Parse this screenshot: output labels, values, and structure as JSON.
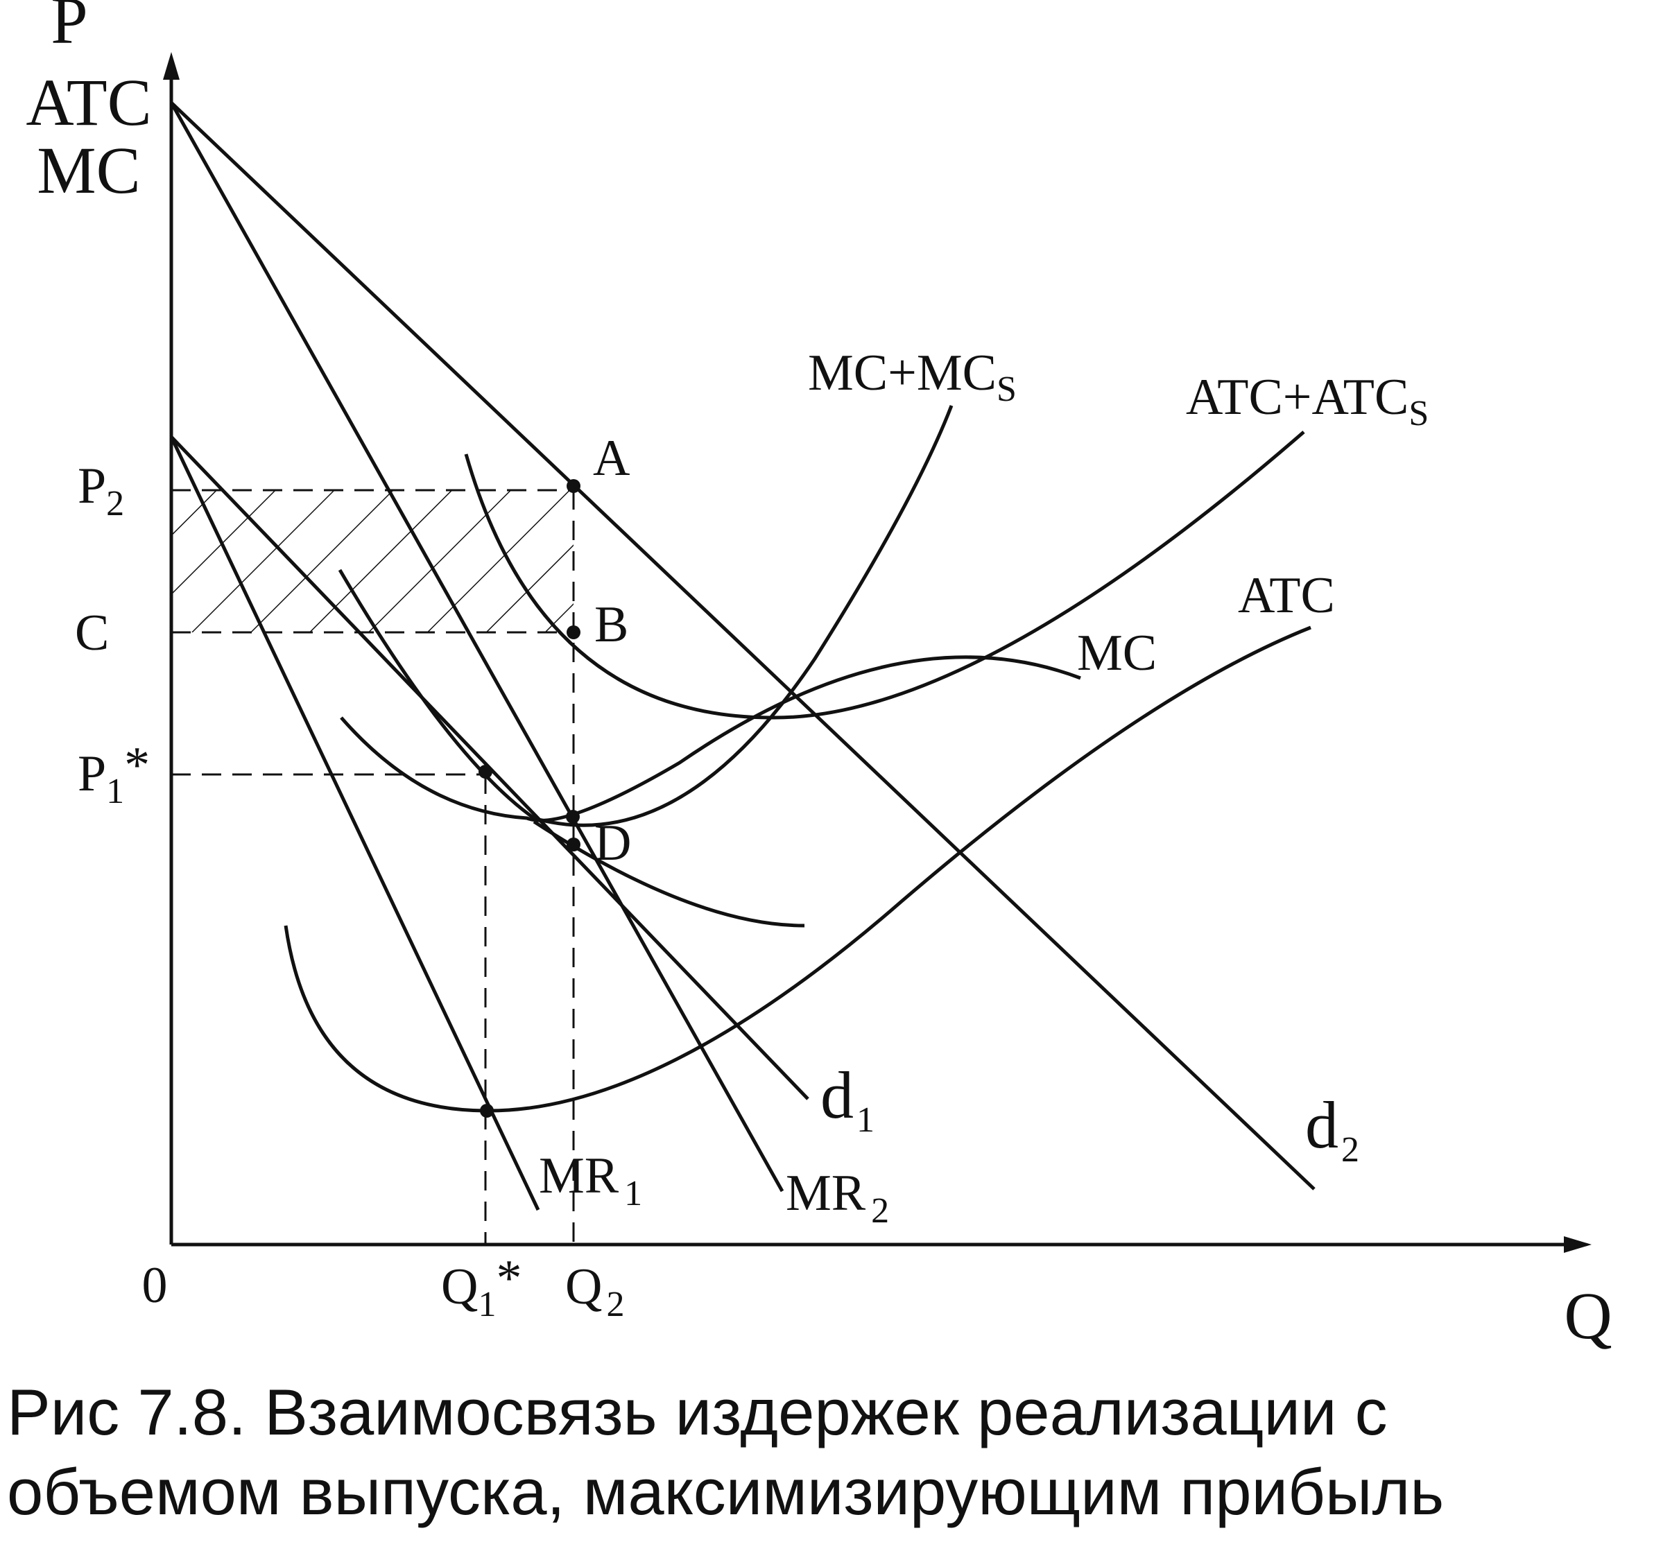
{
  "axes": {
    "y_label_lines": [
      "P",
      "ATC",
      "MC"
    ],
    "x_label": "Q",
    "origin": "0"
  },
  "y_ticks": {
    "p2": {
      "main": "P",
      "sub": "2"
    },
    "c": "C",
    "p1": {
      "main": "P",
      "sub": "1",
      "suffix": "*"
    }
  },
  "x_ticks": {
    "q1": {
      "main": "Q",
      "sub": "1",
      "suffix": "*"
    },
    "q2": {
      "main": "Q",
      "sub": "2"
    }
  },
  "curves": {
    "mc_mcs": {
      "main": "MC+MC",
      "sub": "S"
    },
    "atc_atcs": {
      "main": "ATC+ATC",
      "sub": "S"
    },
    "atc": "ATC",
    "mc": "MC",
    "d1": {
      "main": "d",
      "sub": "1"
    },
    "d2": {
      "main": "d",
      "sub": "2"
    },
    "mr1": {
      "main": "MR",
      "sub": "1"
    },
    "mr2": {
      "main": "MR",
      "sub": "2"
    }
  },
  "points": {
    "a": "A",
    "b": "B",
    "d": "D"
  },
  "caption": {
    "line1": "Рис 7.8.   Взаимосвязь издержек реализации с",
    "line2": "объемом выпуска, максимизирующим прибыль"
  }
}
